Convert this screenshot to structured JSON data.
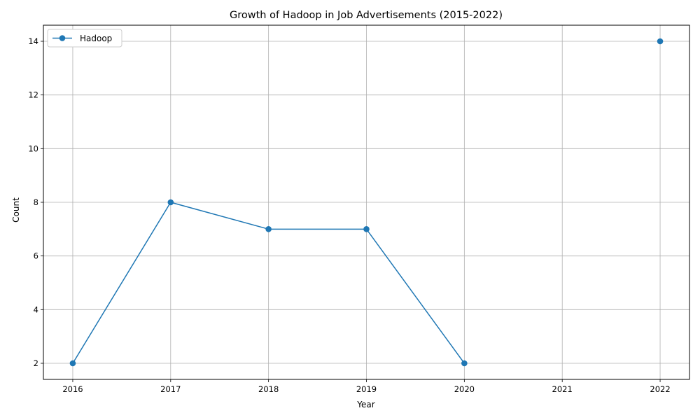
{
  "chart_data": {
    "type": "line",
    "title": "Growth of Hadoop in Job Advertisements (2015-2022)",
    "xlabel": "Year",
    "ylabel": "Count",
    "x": [
      2016,
      2017,
      2018,
      2019,
      2020,
      2021,
      2022
    ],
    "x_ticks": [
      "2016",
      "2017",
      "2018",
      "2019",
      "2020",
      "2021",
      "2022"
    ],
    "y_ticks": [
      "2",
      "4",
      "6",
      "8",
      "10",
      "12",
      "14"
    ],
    "xlim": [
      2015.7,
      2022.3
    ],
    "ylim": [
      1.4,
      14.6
    ],
    "grid": true,
    "legend_position": "top-left",
    "series": [
      {
        "name": "Hadoop",
        "color": "#1f77b4",
        "marker": "circle",
        "values": [
          2,
          8,
          7,
          7,
          2,
          null,
          14
        ]
      }
    ]
  }
}
